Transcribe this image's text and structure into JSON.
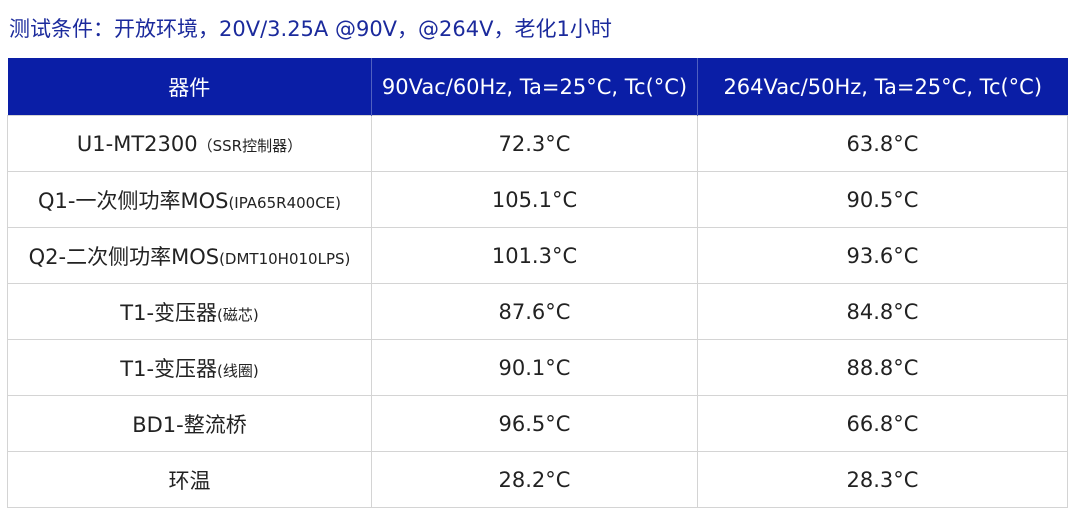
{
  "title": "测试条件：开放环境，20V/3.25A @90V，@264V，老化1小时",
  "table": {
    "headers": [
      "器件",
      "90Vac/60Hz, Ta=25°C, Tc(°C)",
      "264Vac/50Hz, Ta=25°C, Tc(°C)"
    ],
    "rows": [
      {
        "name": "U1-MT2300",
        "note": "（SSR控制器）",
        "v90": "72.3°C",
        "v264": "63.8°C"
      },
      {
        "name": "Q1-一次侧功率MOS",
        "note": "(IPA65R400CE)",
        "v90": "105.1°C",
        "v264": "90.5°C"
      },
      {
        "name": "Q2-二次侧功率MOS",
        "note": "(DMT10H010LPS)",
        "v90": "101.3°C",
        "v264": "93.6°C"
      },
      {
        "name": "T1-变压器",
        "note": "(磁芯)",
        "v90": "87.6°C",
        "v264": "84.8°C"
      },
      {
        "name": "T1-变压器",
        "note": "(线圈)",
        "v90": "90.1°C",
        "v264": "88.8°C"
      },
      {
        "name": "BD1-整流桥",
        "note": "",
        "v90": "96.5°C",
        "v264": "66.8°C"
      },
      {
        "name": "环温",
        "note": "",
        "v90": "28.2°C",
        "v264": "28.3°C"
      }
    ]
  }
}
